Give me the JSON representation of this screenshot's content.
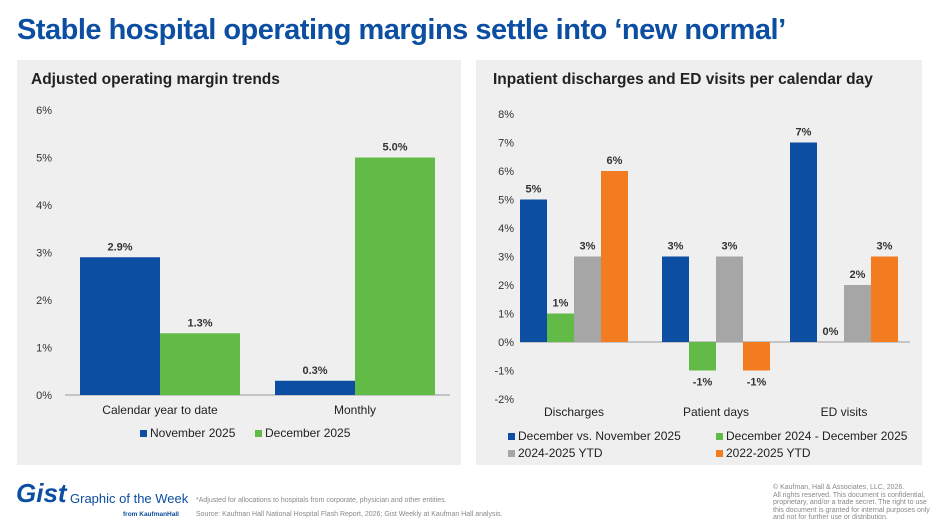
{
  "title": "Stable hospital operating margins settle into ‘new normal’",
  "colors": {
    "blue": "#0b4ea2",
    "green": "#62bb46",
    "gray": "#a6a6a6",
    "orange": "#f47c20",
    "title": "#0b4ea2"
  },
  "chart_data": [
    {
      "type": "bar",
      "title": "Adjusted operating margin trends",
      "categories": [
        "Calendar year to date",
        "Monthly"
      ],
      "series": [
        {
          "name": "November 2025",
          "color": "#0b4ea2",
          "values": [
            2.9,
            0.3
          ],
          "labels": [
            "2.9%",
            "0.3%"
          ]
        },
        {
          "name": "December 2025",
          "color": "#62bb46",
          "values": [
            1.3,
            5.0
          ],
          "labels": [
            "1.3%",
            "5.0%"
          ]
        }
      ],
      "ylim": [
        0,
        6
      ],
      "yticks": [
        "0%",
        "1%",
        "2%",
        "3%",
        "4%",
        "5%",
        "6%"
      ],
      "grid": false,
      "legend": "bottom"
    },
    {
      "type": "bar",
      "title": "Inpatient discharges and ED visits per calendar day",
      "categories": [
        "Discharges",
        "Patient days",
        "ED visits"
      ],
      "series": [
        {
          "name": "December vs. November 2025",
          "color": "#0b4ea2",
          "values": [
            5,
            3,
            7
          ],
          "labels": [
            "5%",
            "3%",
            "7%"
          ]
        },
        {
          "name": "December 2024 - December 2025",
          "color": "#62bb46",
          "values": [
            1,
            -1,
            0
          ],
          "labels": [
            "1%",
            "-1%",
            "0%"
          ]
        },
        {
          "name": "2024-2025 YTD",
          "color": "#a6a6a6",
          "values": [
            3,
            3,
            2
          ],
          "labels": [
            "3%",
            "3%",
            "2%"
          ]
        },
        {
          "name": "2022-2025 YTD",
          "color": "#f47c20",
          "values": [
            6,
            -1,
            3
          ],
          "labels": [
            "6%",
            "-1%",
            "3%"
          ]
        }
      ],
      "ylim": [
        -2,
        8
      ],
      "yticks": [
        "-2%",
        "-1%",
        "0%",
        "1%",
        "2%",
        "3%",
        "4%",
        "5%",
        "6%",
        "7%",
        "8%"
      ],
      "grid": false,
      "legend": "bottom"
    }
  ],
  "footer": {
    "brand": "Gist",
    "tagline": "Graphic of the Week",
    "from": "from KaufmanHall",
    "note": "*Adjusted for allocations to hospitals from corporate, physician and other entities.",
    "source": "Source: Kaufman Hall National Hospital Flash Report, 2026; Gist Weekly at Kaufman Hall analysis.",
    "copyright": [
      "© Kaufman, Hall & Associates, LLC, 2026.",
      "All rights reserved. This document is confidential,",
      "proprietary, and/or a trade secret. The right to use",
      "this document is granted for internal purposes only",
      "and not for further use or distribution."
    ]
  }
}
